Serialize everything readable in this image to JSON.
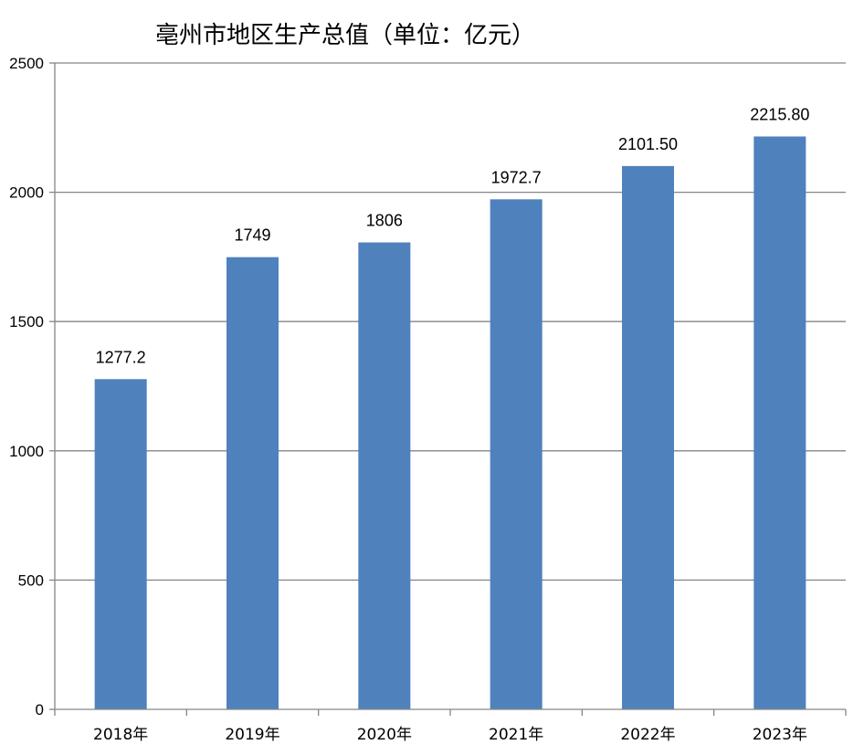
{
  "chart_data": {
    "type": "bar",
    "title": "亳州市地区生产总值（单位：亿元）",
    "categories": [
      "2018年",
      "2019年",
      "2020年",
      "2021年",
      "2022年",
      "2023年"
    ],
    "values": [
      1277.2,
      1749,
      1806,
      1972.7,
      2101.5,
      2215.8
    ],
    "data_labels": [
      "1277.2",
      "1749",
      "1806",
      "1972.7",
      "2101.50",
      "2215.80"
    ],
    "ylim": [
      0,
      2500
    ],
    "yticks": [
      0,
      500,
      1000,
      1500,
      2000,
      2500
    ],
    "grid": true,
    "legend": "none",
    "bar_color": "#4f81bd",
    "grid_color": "#868686"
  }
}
